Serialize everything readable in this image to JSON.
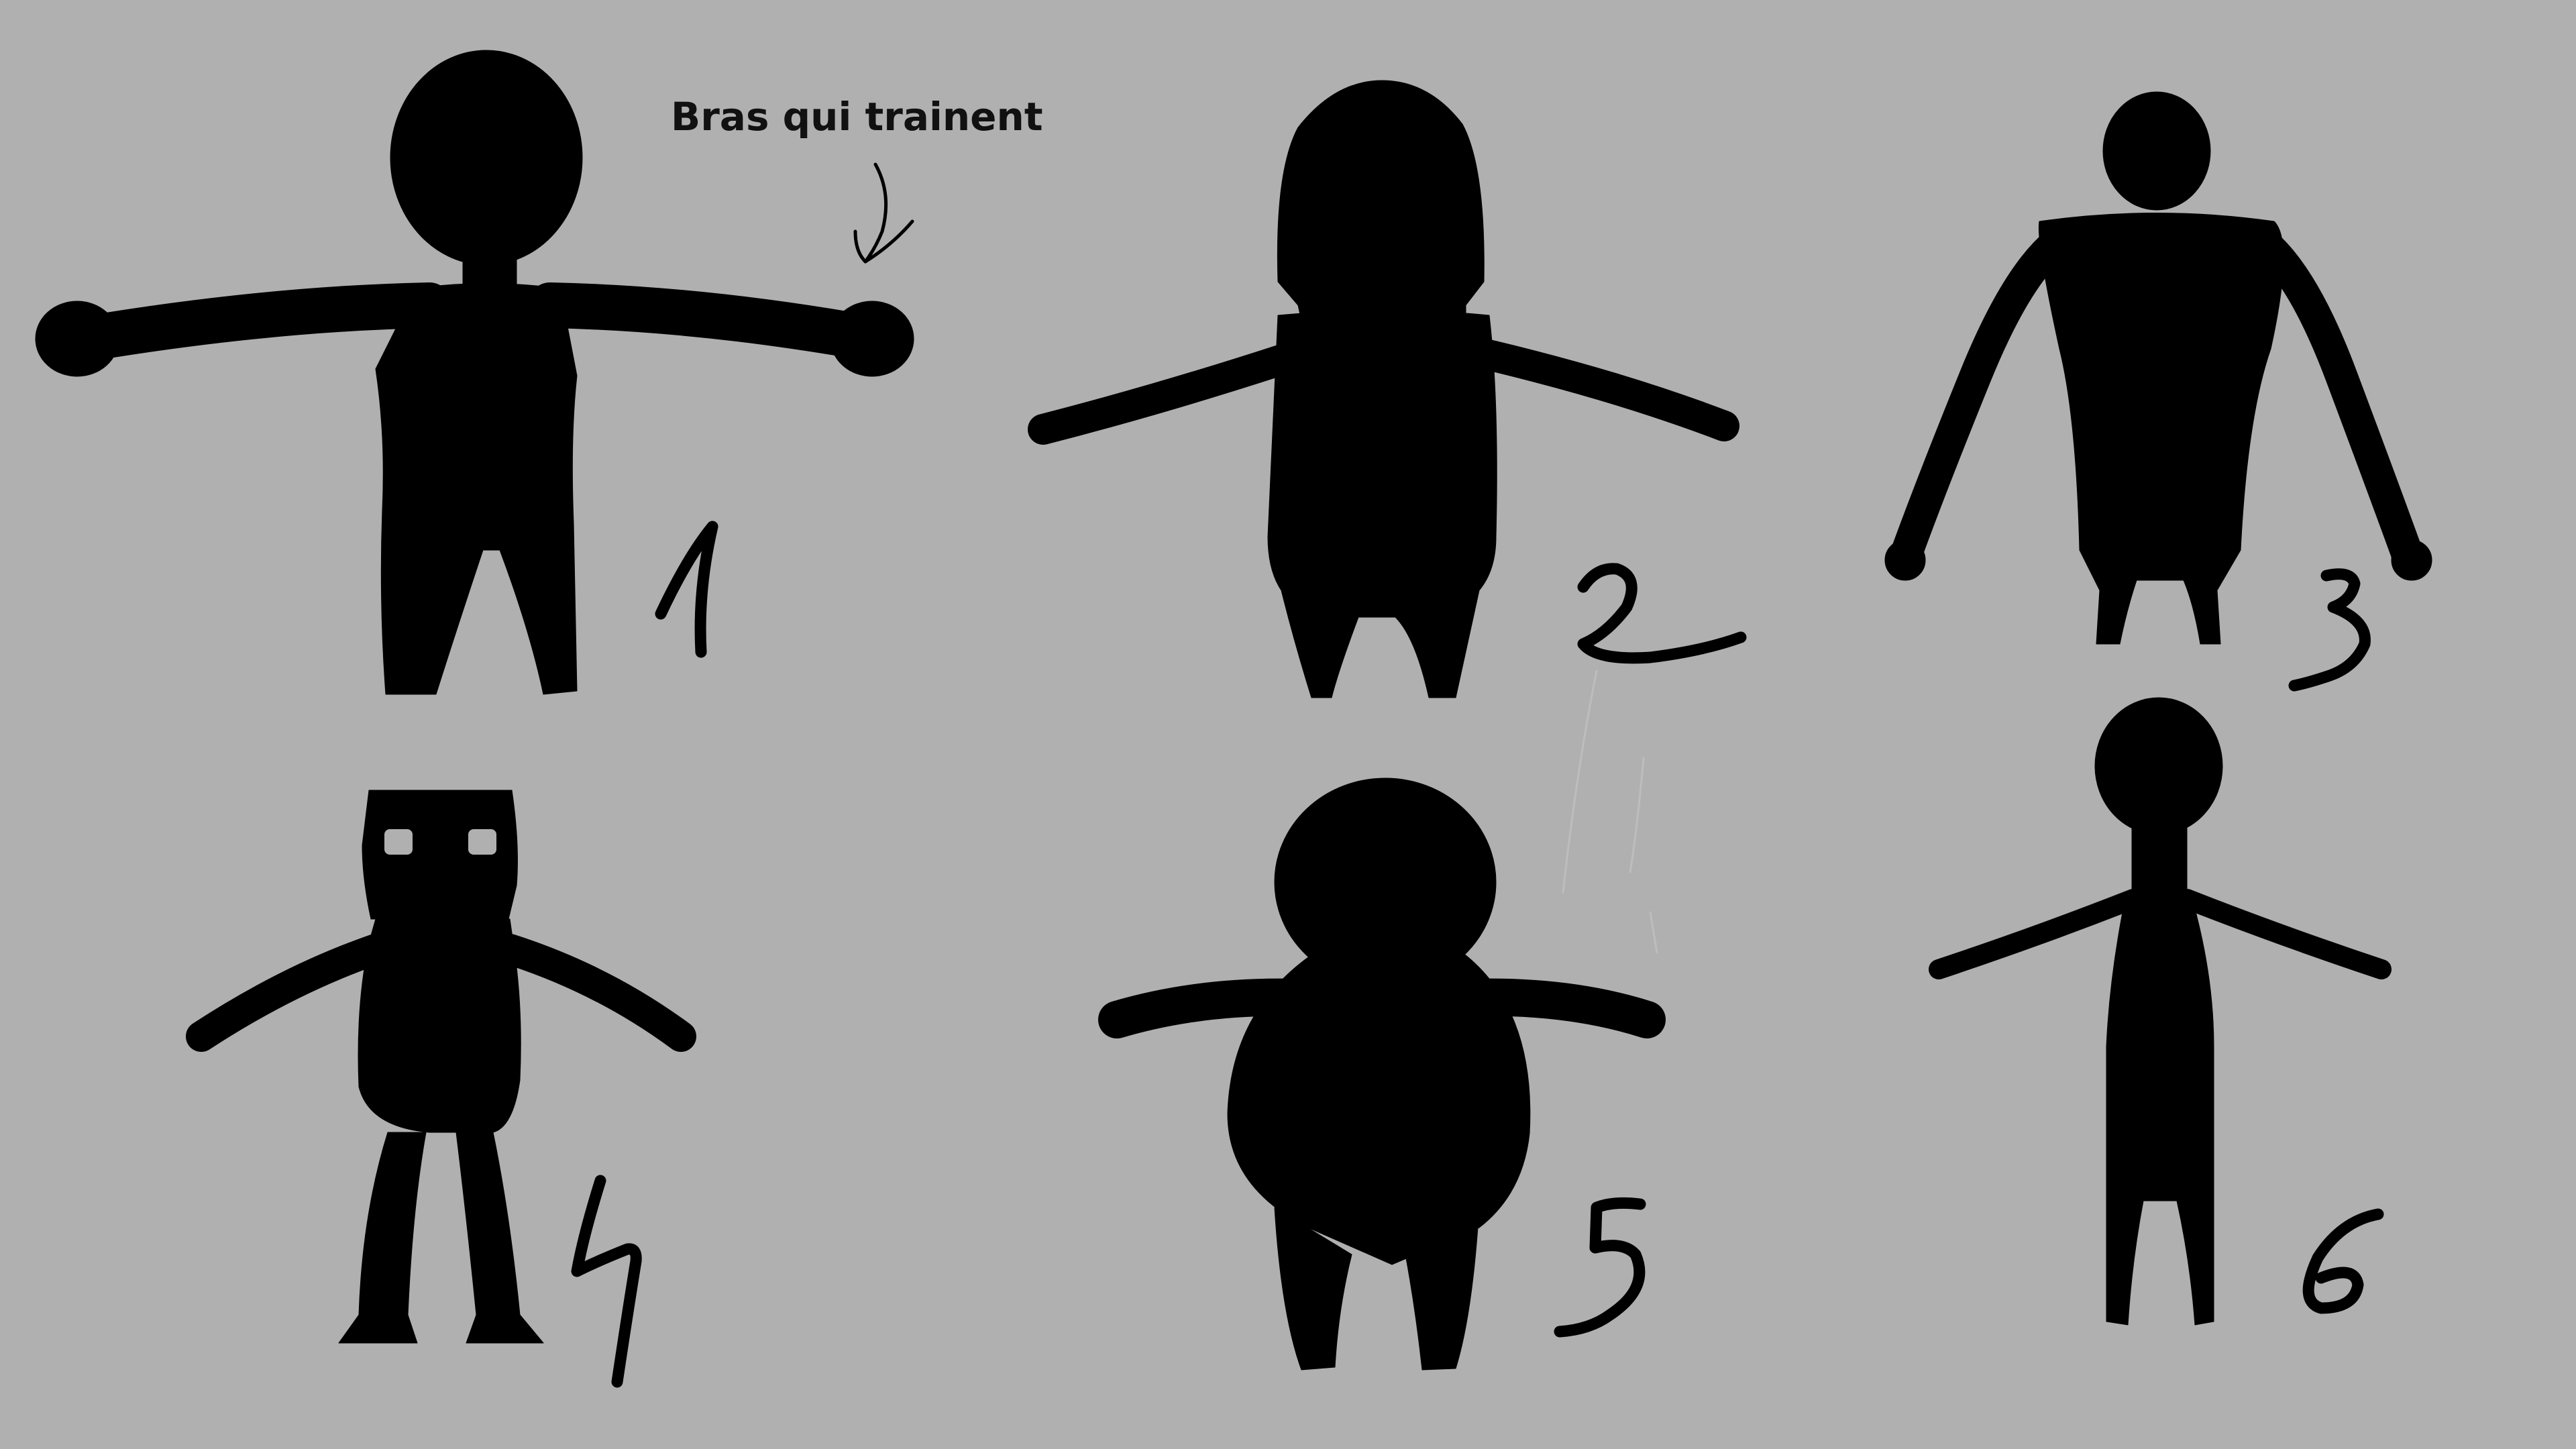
{
  "annotation": {
    "text": "Bras qui trainent",
    "pointer": "arrow-down-icon"
  },
  "colors": {
    "background": "#b0b0b0",
    "silhouette": "#000000",
    "eyes": "#b0b0b0"
  },
  "silhouettes": [
    {
      "number": "1",
      "description": "large-head-long-arms"
    },
    {
      "number": "2",
      "description": "tall-capsule-body"
    },
    {
      "number": "3",
      "description": "small-head-wide-torso"
    },
    {
      "number": "4",
      "description": "square-head-robot"
    },
    {
      "number": "5",
      "description": "round-chubby"
    },
    {
      "number": "6",
      "description": "thin-stick"
    }
  ]
}
